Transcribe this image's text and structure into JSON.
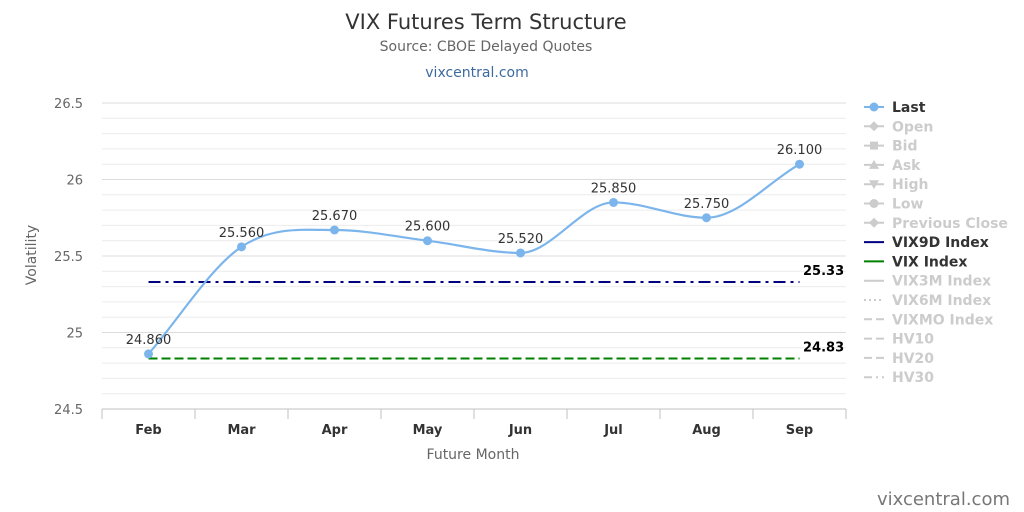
{
  "chart_data": {
    "type": "line",
    "title": "VIX Futures Term Structure",
    "subtitle": "Source: CBOE Delayed Quotes",
    "link_text": "vixcentral.com",
    "xlabel": "Future Month",
    "ylabel": "Volatility",
    "categories": [
      "Feb",
      "Mar",
      "Apr",
      "May",
      "Jun",
      "Jul",
      "Aug",
      "Sep"
    ],
    "ylim": [
      24.5,
      26.5
    ],
    "yticks": [
      24.5,
      25,
      25.5,
      26,
      26.5
    ],
    "ytick_labels": [
      "24.5",
      "25",
      "25.5",
      "26",
      "26.5"
    ],
    "grid": true,
    "legend_position": "right",
    "series": [
      {
        "name": "Last",
        "color": "#7cb5ec",
        "values": [
          24.86,
          25.56,
          25.67,
          25.6,
          25.52,
          25.85,
          25.75,
          26.1
        ],
        "labels": [
          "24.860",
          "25.560",
          "25.670",
          "25.600",
          "25.520",
          "25.850",
          "25.750",
          "26.100"
        ]
      },
      {
        "name": "VIX9D Index",
        "color": "#000080",
        "value": 25.33,
        "label": "25.33"
      },
      {
        "name": "VIX Index",
        "color": "#008000",
        "value": 24.83,
        "label": "24.83"
      }
    ],
    "legend": [
      {
        "name": "Last",
        "active": true,
        "color": "#7cb5ec",
        "symbol": "circle"
      },
      {
        "name": "Open",
        "active": false,
        "color": "#cccccc",
        "symbol": "diamond"
      },
      {
        "name": "Bid",
        "active": false,
        "color": "#cccccc",
        "symbol": "square"
      },
      {
        "name": "Ask",
        "active": false,
        "color": "#cccccc",
        "symbol": "triangle"
      },
      {
        "name": "High",
        "active": false,
        "color": "#cccccc",
        "symbol": "triangle-down"
      },
      {
        "name": "Low",
        "active": false,
        "color": "#cccccc",
        "symbol": "circle"
      },
      {
        "name": "Previous Close",
        "active": false,
        "color": "#cccccc",
        "symbol": "diamond"
      },
      {
        "name": "VIX9D Index",
        "active": true,
        "color": "#000080",
        "symbol": "solid"
      },
      {
        "name": "VIX Index",
        "active": true,
        "color": "#008000",
        "symbol": "solid"
      },
      {
        "name": "VIX3M Index",
        "active": false,
        "color": "#cccccc",
        "symbol": "solid"
      },
      {
        "name": "VIX6M Index",
        "active": false,
        "color": "#cccccc",
        "symbol": "dot"
      },
      {
        "name": "VIXMO Index",
        "active": false,
        "color": "#cccccc",
        "symbol": "dash"
      },
      {
        "name": "HV10",
        "active": false,
        "color": "#cccccc",
        "symbol": "dash"
      },
      {
        "name": "HV20",
        "active": false,
        "color": "#cccccc",
        "symbol": "dash"
      },
      {
        "name": "HV30",
        "active": false,
        "color": "#cccccc",
        "symbol": "dashdot"
      }
    ],
    "credit": "vixcentral.com"
  }
}
